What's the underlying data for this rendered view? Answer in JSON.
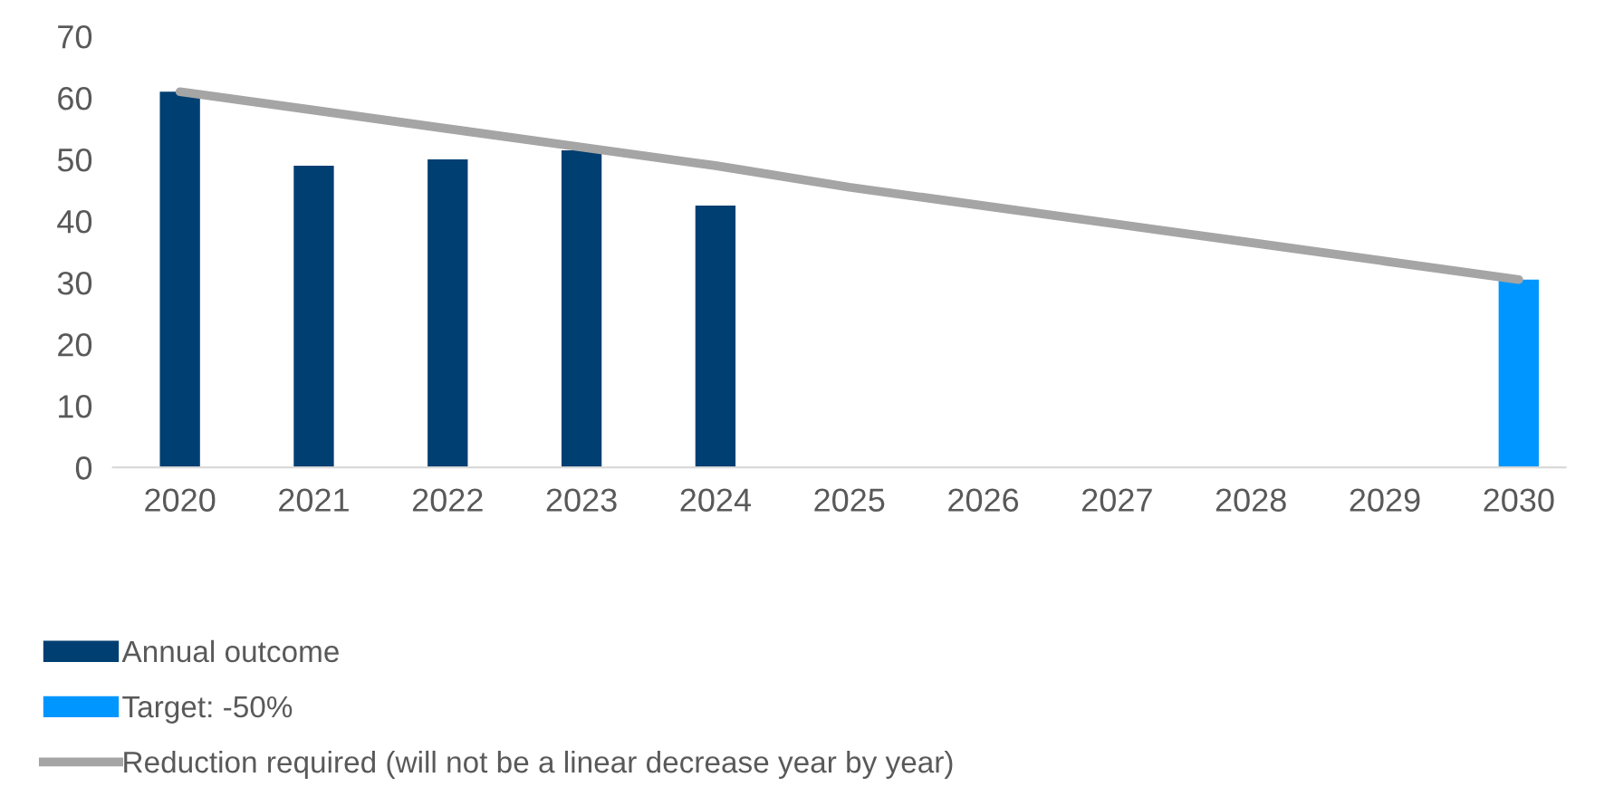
{
  "chart_data": {
    "type": "bar",
    "categories": [
      "2020",
      "2021",
      "2022",
      "2023",
      "2024",
      "2025",
      "2026",
      "2027",
      "2028",
      "2029",
      "2030"
    ],
    "series": [
      {
        "name": "Annual outcome",
        "color": "#003f72",
        "values": [
          61,
          49,
          50,
          51.5,
          42.5,
          null,
          null,
          null,
          null,
          null,
          null
        ]
      },
      {
        "name": "Target: -50%",
        "color": "#0096ff",
        "values": [
          null,
          null,
          null,
          null,
          null,
          null,
          null,
          null,
          null,
          null,
          30.5
        ]
      },
      {
        "name": "Reduction required (will not be a linear decrease year by year)",
        "type": "line",
        "color": "#a5a5a5",
        "values": [
          61,
          58,
          55,
          52,
          49,
          45.5,
          42.5,
          39.5,
          36.5,
          33.5,
          30.5
        ]
      }
    ],
    "ylim": [
      0,
      70
    ],
    "yticks": [
      0,
      10,
      20,
      30,
      40,
      50,
      60,
      70
    ],
    "grid": false,
    "legend": "bottom left",
    "marker": "none",
    "line_style": "solid"
  }
}
